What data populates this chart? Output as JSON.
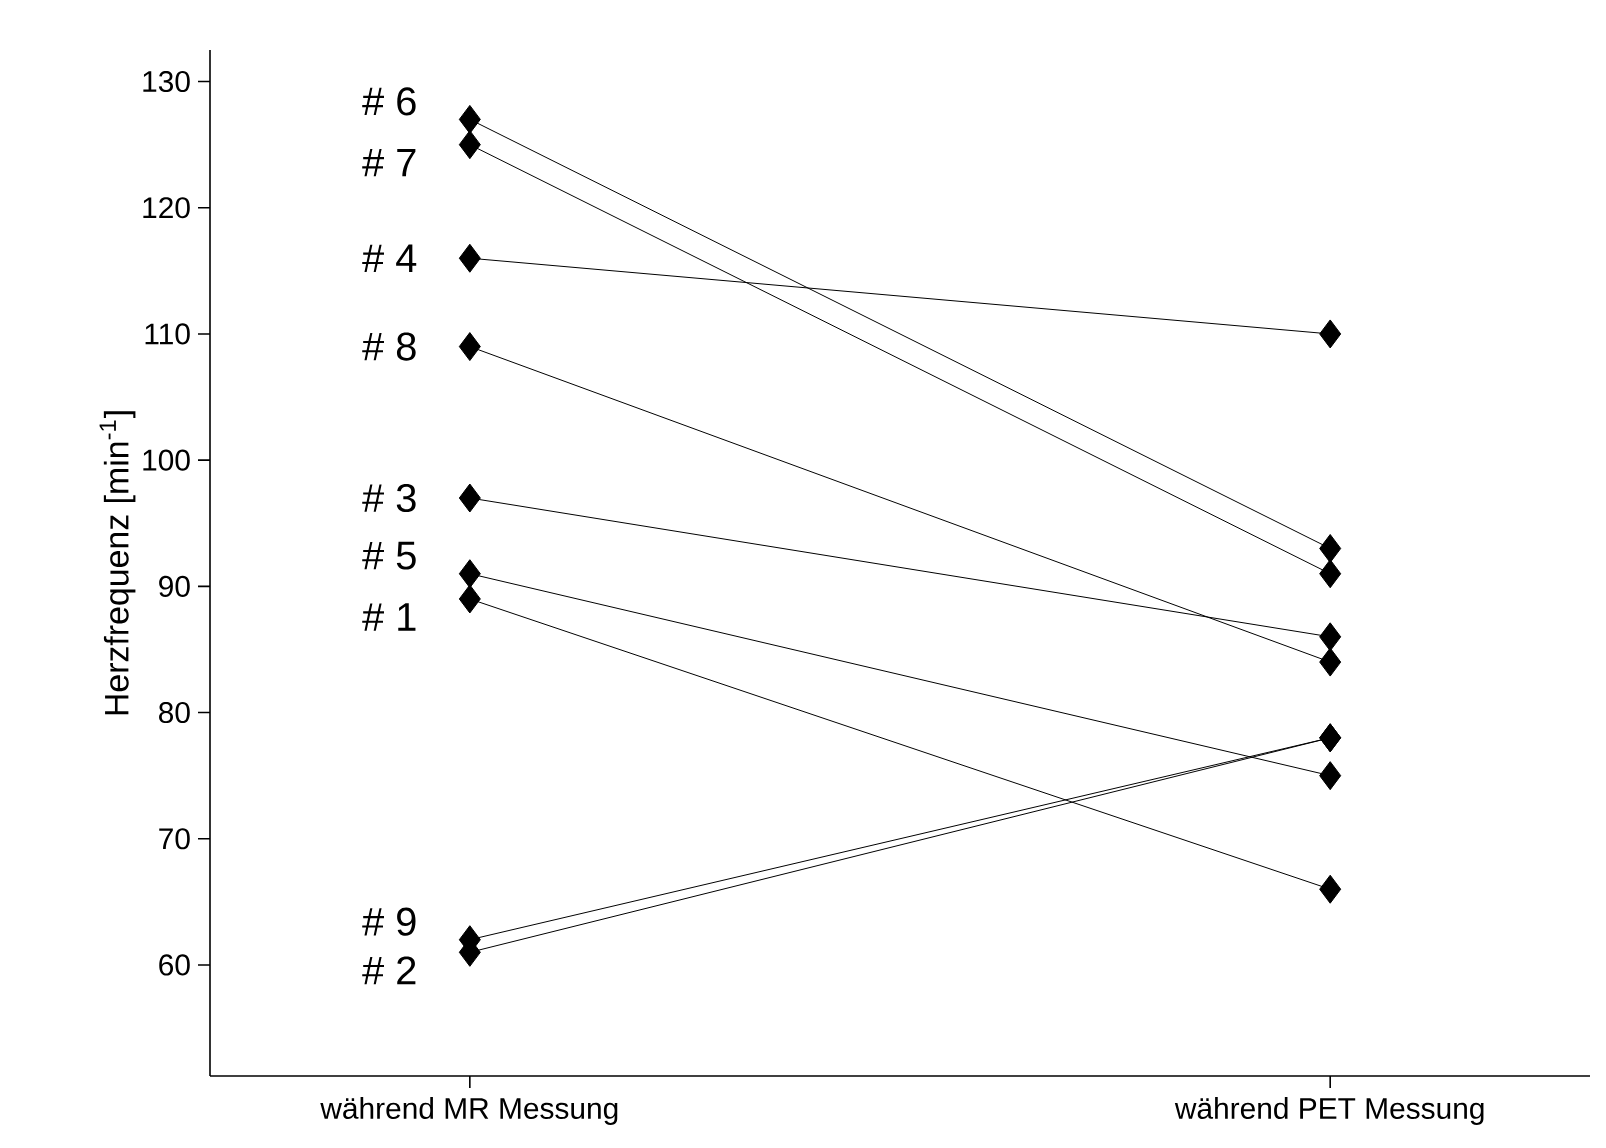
{
  "chart_data": {
    "type": "line",
    "ylabel": "Herzfrequenz [min$^{-1}$]",
    "categories": [
      "während MR Messung",
      "während PET Messung"
    ],
    "series": [
      {
        "color": "#000000",
        "values": [
          89,
          66
        ]
      },
      {
        "color": "#000000",
        "values": [
          61,
          78
        ]
      },
      {
        "color": "#000000",
        "values": [
          97,
          86
        ]
      },
      {
        "color": "#000000",
        "values": [
          116,
          110
        ]
      },
      {
        "color": "#000000",
        "values": [
          91,
          75
        ]
      },
      {
        "color": "#000000",
        "values": [
          127,
          93
        ]
      },
      {
        "color": "#000000",
        "values": [
          125,
          91
        ]
      },
      {
        "color": "#000000",
        "values": [
          109,
          84
        ]
      },
      {
        "color": "#000000",
        "values": [
          62,
          78
        ]
      }
    ],
    "ylim": [
      51.2,
      132.5
    ],
    "yticks": [
      60,
      70,
      80,
      90,
      100,
      110,
      120,
      130
    ],
    "marker": "diamond",
    "line_style": "solid",
    "grid": false,
    "annotations": [
      {
        "text": "# 1",
        "x": "während MR Messung",
        "y": 89
      },
      {
        "text": "# 2",
        "x": "während MR Messung",
        "y": 61
      },
      {
        "text": "# 3",
        "x": "während MR Messung",
        "y": 97
      },
      {
        "text": "# 4",
        "x": "während MR Messung",
        "y": 116
      },
      {
        "text": "# 5",
        "x": "während MR Messung",
        "y": 91
      },
      {
        "text": "# 6",
        "x": "während MR Messung",
        "y": 127
      },
      {
        "text": "# 7",
        "x": "während MR Messung",
        "y": 125
      },
      {
        "text": "# 8",
        "x": "während MR Messung",
        "y": 109
      },
      {
        "text": "# 9",
        "x": "während MR Messung",
        "y": 62
      }
    ]
  }
}
